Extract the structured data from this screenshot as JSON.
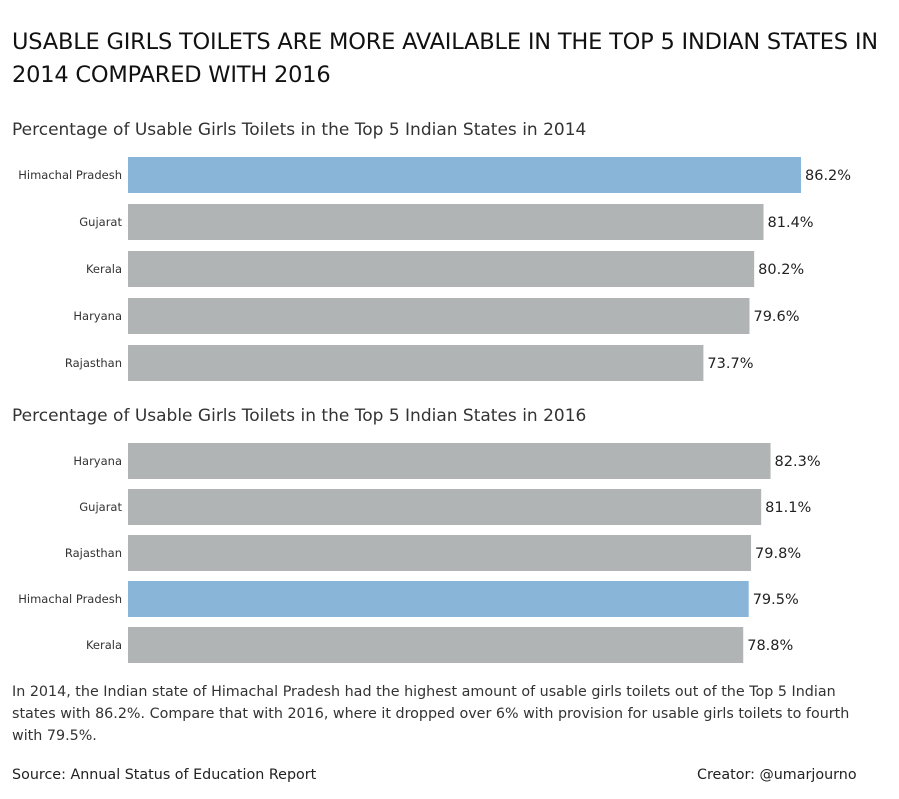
{
  "title": "USABLE GIRLS TOILETS ARE MORE AVAILABLE IN THE TOP 5 INDIAN STATES IN 2014 COMPARED WITH 2016",
  "colors": {
    "highlight": "#89b5d9",
    "default": "#b1b4b5"
  },
  "chart_data": [
    {
      "type": "bar",
      "orientation": "horizontal",
      "title": "Percentage of Usable Girls Toilets in the Top 5 Indian States in 2014",
      "categories": [
        "Himachal Pradesh",
        "Gujarat",
        "Kerala",
        "Haryana",
        "Rajasthan"
      ],
      "values": [
        86.2,
        81.4,
        80.2,
        79.6,
        73.7
      ],
      "labels": [
        "86.2%",
        "81.4%",
        "80.2%",
        "79.6%",
        "73.7%"
      ],
      "highlight": "Himachal Pradesh",
      "xlim": [
        0,
        86.2
      ],
      "grid": false
    },
    {
      "type": "bar",
      "orientation": "horizontal",
      "title": "Percentage of Usable Girls Toilets in the Top 5 Indian States in 2016",
      "categories": [
        "Haryana",
        "Gujarat",
        "Rajasthan",
        "Himachal Pradesh",
        "Kerala"
      ],
      "values": [
        82.3,
        81.1,
        79.8,
        79.5,
        78.8
      ],
      "labels": [
        "82.3%",
        "81.1%",
        "79.8%",
        "79.5%",
        "78.8%"
      ],
      "highlight": "Himachal Pradesh",
      "xlim": [
        0,
        86.2
      ],
      "grid": false
    }
  ],
  "note": "In 2014, the Indian state of Himachal Pradesh had the highest amount of usable girls toilets out of the Top 5 Indian states with 86.2%. Compare that with 2016, where it dropped over 6% with provision for usable girls toilets to fourth with 79.5%.",
  "source": "Source: Annual Status of Education Report",
  "creator": "Creator: @umarjourno"
}
